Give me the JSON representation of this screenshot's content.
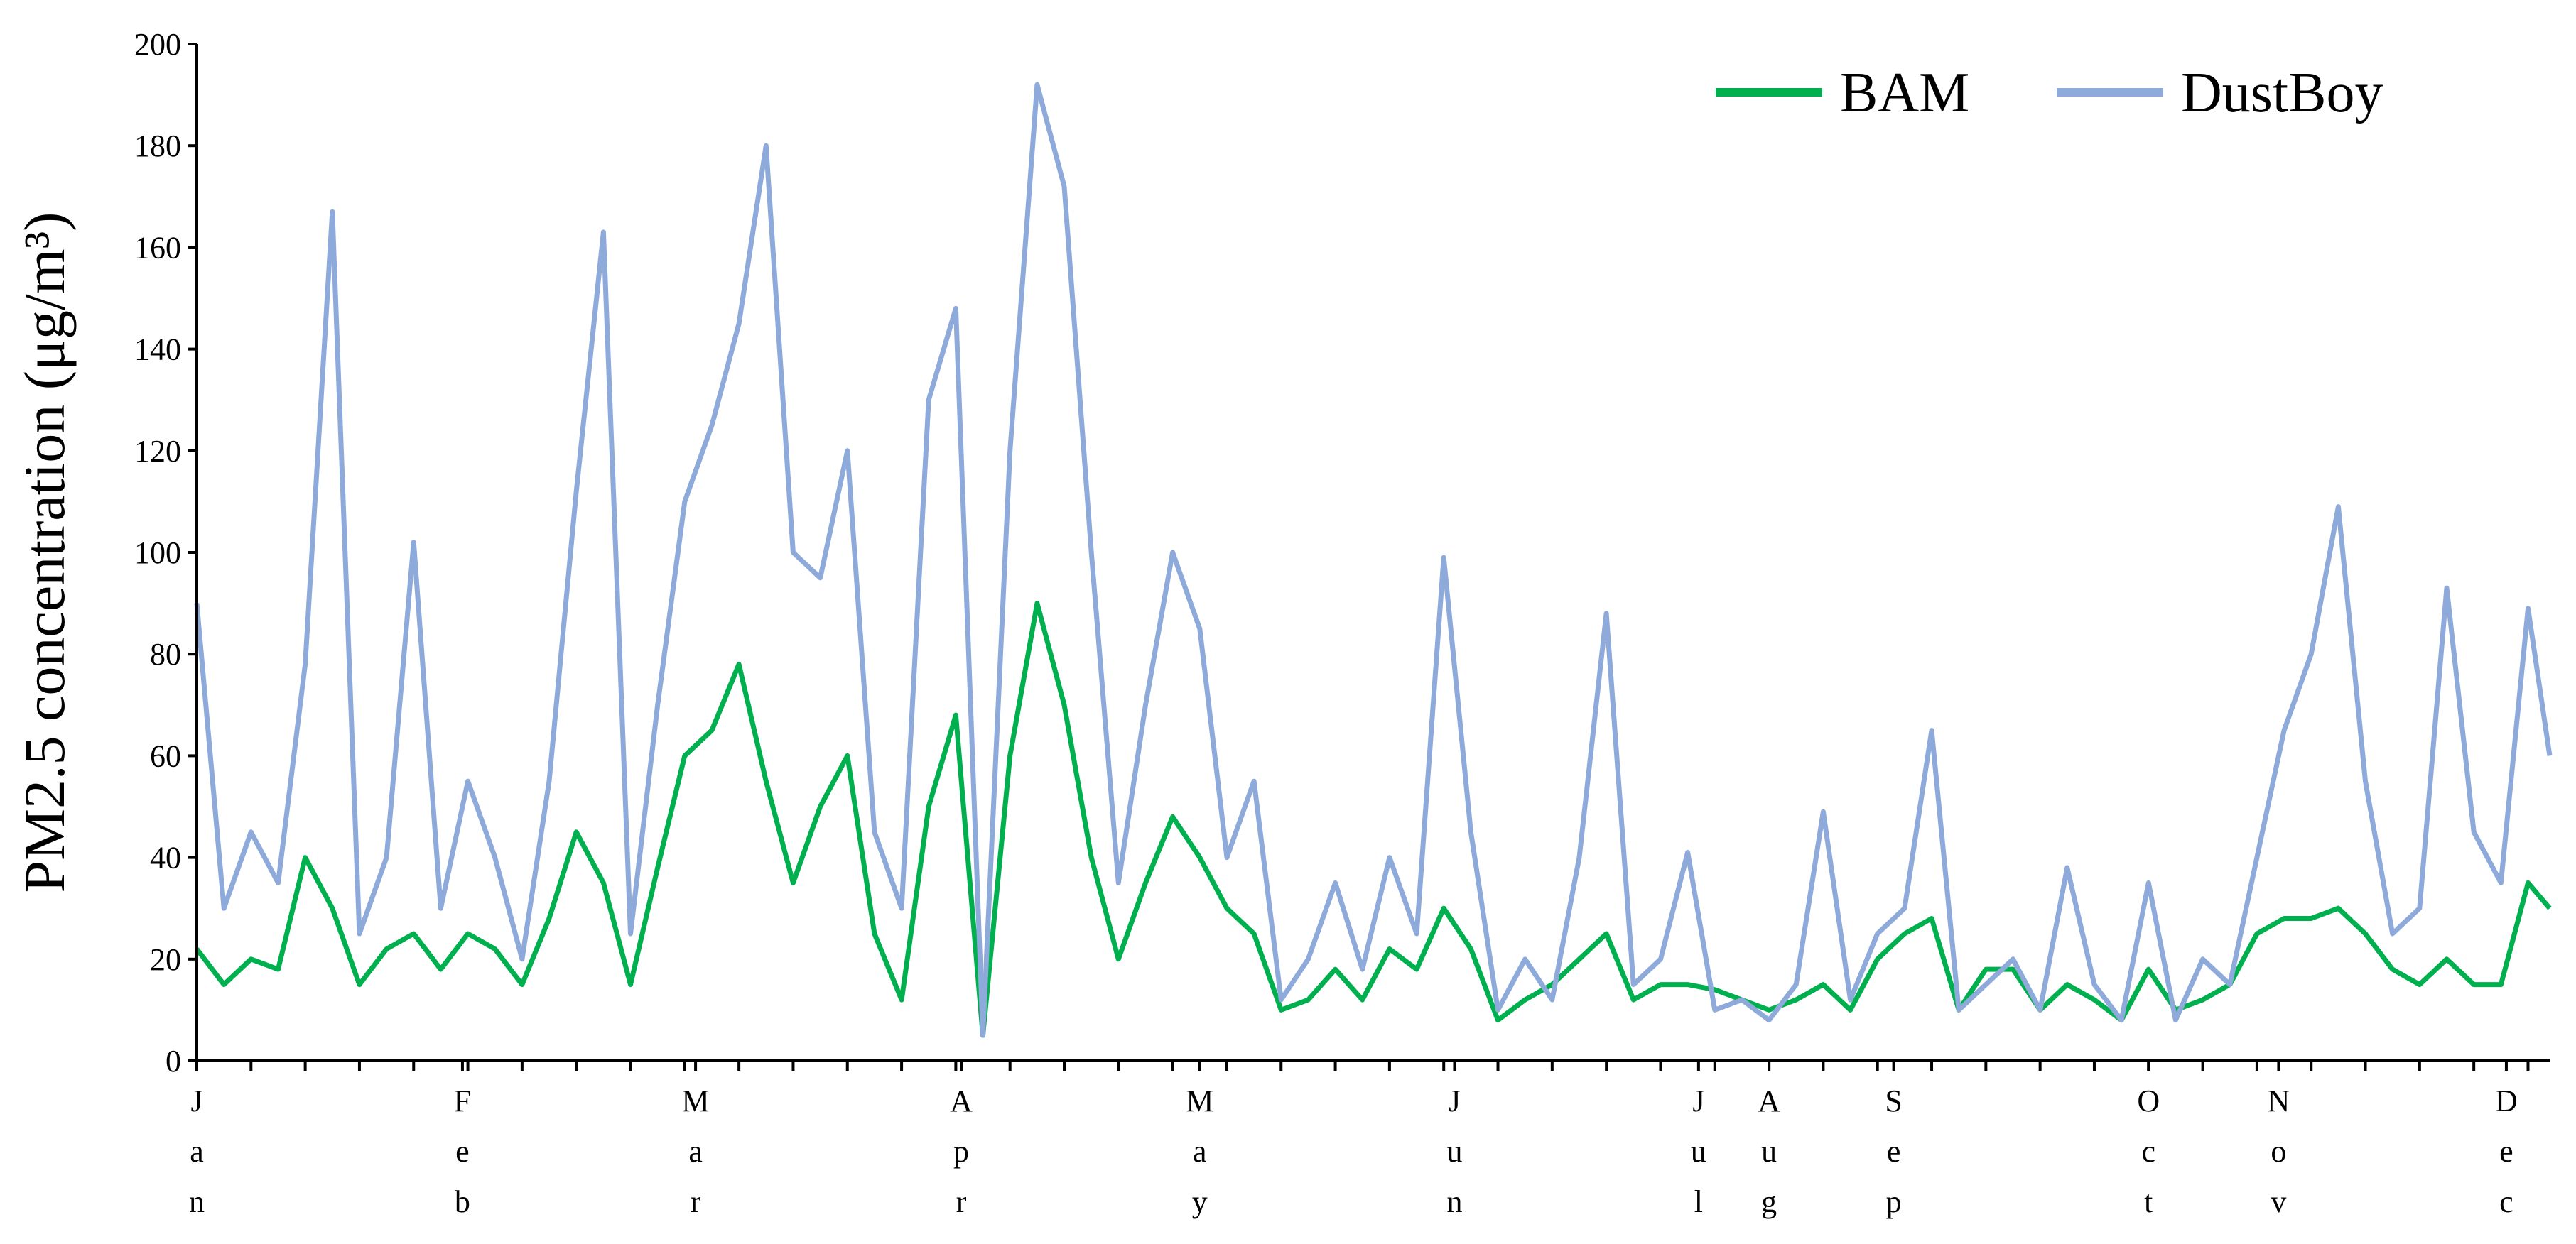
{
  "chart_data": {
    "type": "line",
    "y_label": "PM2.5 concentration (μg/m³)",
    "xlim": [
      0,
      434
    ],
    "xticks": [
      {
        "value": 0,
        "label": "Jan"
      },
      {
        "value": 49,
        "label": "Feb"
      },
      {
        "value": 92,
        "label": "Mar"
      },
      {
        "value": 141,
        "label": "Apr"
      },
      {
        "value": 185,
        "label": "May"
      },
      {
        "value": 232,
        "label": "Jun"
      },
      {
        "value": 277,
        "label": "Jul"
      },
      {
        "value": 290,
        "label": "Aug"
      },
      {
        "value": 313,
        "label": "Sep"
      },
      {
        "value": 360,
        "label": "Oct"
      },
      {
        "value": 384,
        "label": "Nov"
      },
      {
        "value": 426,
        "label": "Dec"
      }
    ],
    "xminorticks": [
      10,
      20,
      30,
      40,
      50,
      60,
      70,
      80,
      90,
      100,
      110,
      120,
      130,
      140,
      150,
      160,
      170,
      180,
      190,
      200,
      210,
      220,
      230,
      240,
      250,
      260,
      270,
      280,
      290,
      300,
      310,
      320,
      330,
      340,
      350,
      360,
      370,
      380,
      390,
      400,
      410,
      420,
      430
    ],
    "ylim": [
      0,
      200
    ],
    "yticks": [
      0,
      20,
      40,
      60,
      80,
      100,
      120,
      140,
      160,
      180,
      200
    ],
    "legend": "top right",
    "x": [
      0,
      5,
      10,
      15,
      20,
      25,
      30,
      35,
      40,
      45,
      50,
      55,
      60,
      65,
      70,
      75,
      80,
      85,
      90,
      95,
      100,
      105,
      110,
      115,
      120,
      125,
      130,
      135,
      140,
      145,
      150,
      155,
      160,
      165,
      170,
      175,
      180,
      185,
      190,
      195,
      200,
      205,
      210,
      215,
      220,
      225,
      230,
      235,
      240,
      245,
      250,
      255,
      260,
      265,
      270,
      275,
      280,
      285,
      290,
      295,
      300,
      305,
      310,
      315,
      320,
      325,
      330,
      335,
      340,
      345,
      350,
      355,
      360,
      365,
      370,
      375,
      380,
      385,
      390,
      395,
      400,
      405,
      410,
      415,
      420,
      425,
      430,
      434
    ],
    "series": [
      {
        "name": "BAM",
        "color": "#00b04f",
        "values": [
          22,
          15,
          20,
          18,
          40,
          30,
          15,
          22,
          25,
          18,
          25,
          22,
          15,
          28,
          45,
          35,
          15,
          38,
          60,
          65,
          78,
          55,
          35,
          50,
          60,
          25,
          12,
          50,
          68,
          5,
          60,
          90,
          70,
          40,
          20,
          35,
          48,
          40,
          30,
          25,
          10,
          12,
          18,
          12,
          22,
          18,
          30,
          22,
          8,
          12,
          15,
          20,
          25,
          12,
          15,
          15,
          14,
          12,
          10,
          12,
          15,
          10,
          20,
          25,
          28,
          10,
          18,
          18,
          10,
          15,
          12,
          8,
          18,
          10,
          12,
          15,
          25,
          28,
          28,
          30,
          25,
          18,
          15,
          20,
          15,
          15,
          35,
          30
        ]
      },
      {
        "name": "DustBoy",
        "color": "#8eaadb",
        "values": [
          90,
          30,
          45,
          35,
          78,
          167,
          25,
          40,
          102,
          30,
          55,
          40,
          20,
          55,
          112,
          163,
          25,
          70,
          110,
          125,
          145,
          180,
          100,
          95,
          120,
          45,
          30,
          130,
          148,
          5,
          120,
          192,
          172,
          100,
          35,
          70,
          100,
          85,
          40,
          55,
          12,
          20,
          35,
          18,
          40,
          25,
          99,
          45,
          10,
          20,
          12,
          40,
          88,
          15,
          20,
          41,
          10,
          12,
          8,
          15,
          49,
          12,
          25,
          30,
          65,
          10,
          15,
          20,
          10,
          38,
          15,
          8,
          35,
          8,
          20,
          15,
          40,
          65,
          80,
          109,
          55,
          25,
          30,
          93,
          45,
          35,
          89,
          60
        ]
      }
    ]
  }
}
